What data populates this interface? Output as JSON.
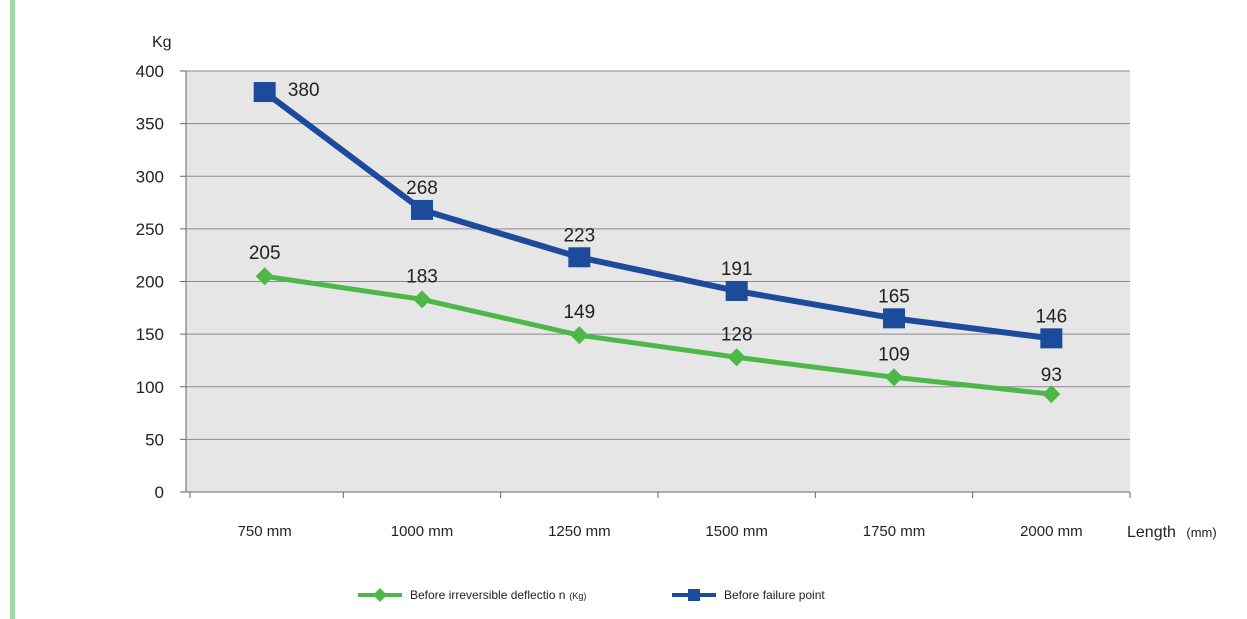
{
  "chart_data": {
    "type": "line",
    "title": "",
    "ylabel": "Kg",
    "xlabel": "Length",
    "xlabel_unit": "(mm)",
    "ylim": [
      0,
      400
    ],
    "yticks": [
      "0",
      "50",
      "100",
      "150",
      "200",
      "250",
      "300",
      "350",
      "400"
    ],
    "categories": [
      "750 mm",
      "1000 mm",
      "1250 mm",
      "1500 mm",
      "1750 mm",
      "2000 mm"
    ],
    "grid": true,
    "legend_position": "bottom",
    "series": [
      {
        "name": "Before irreversible deflectio n",
        "name_suffix": "(Kg)",
        "marker": "diamond",
        "color": "#4db848",
        "values": [
          205,
          183,
          149,
          128,
          109,
          93
        ]
      },
      {
        "name": "Before failure point",
        "marker": "square",
        "color": "#1c4b9c",
        "values": [
          380,
          268,
          223,
          191,
          165,
          146
        ]
      }
    ]
  },
  "colors": {
    "plot_background": "#e6e6e6",
    "gridline": "#8a8a8a",
    "accent_bar": "#9fd8a8"
  }
}
